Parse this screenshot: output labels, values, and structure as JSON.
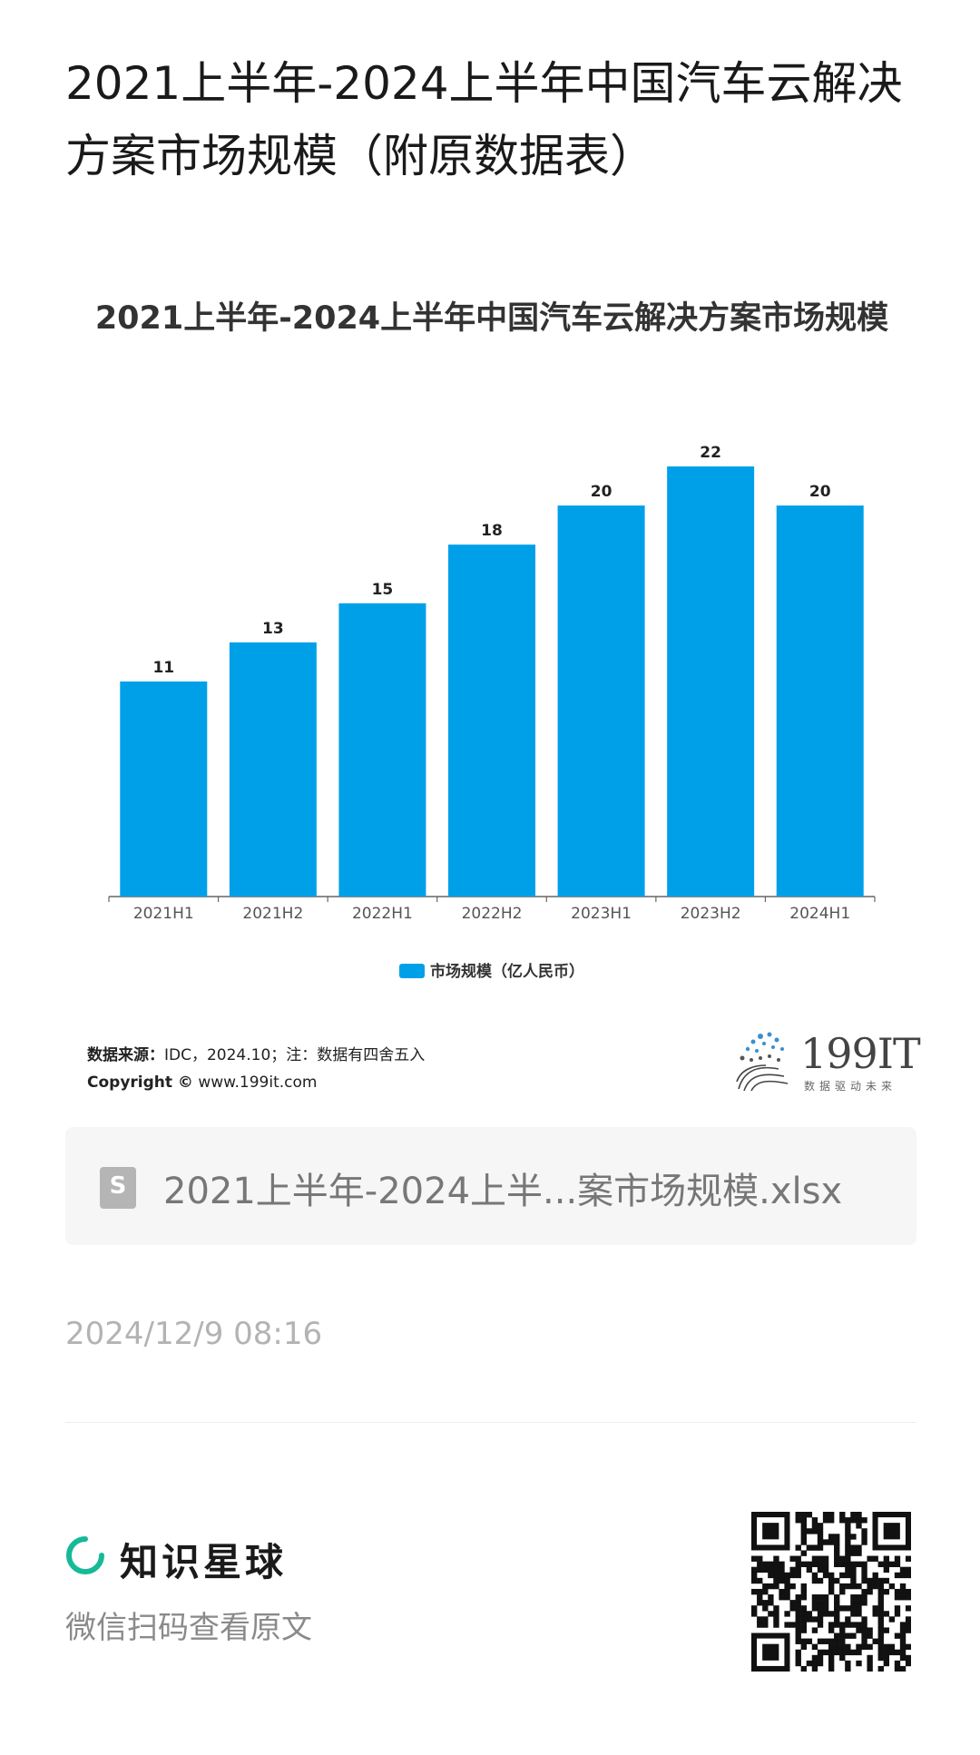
{
  "page_title": "2021上半年-2024上半年中国汽车云解决方案市场规模（附原数据表）",
  "chart_data": {
    "type": "bar",
    "title": "2021上半年-2024上半年中国汽车云解决方案市场规模",
    "categories": [
      "2021H1",
      "2021H2",
      "2022H1",
      "2022H2",
      "2023H1",
      "2023H2",
      "2024H1"
    ],
    "series": [
      {
        "name": "市场规模（亿人民币）",
        "values": [
          11,
          13,
          15,
          18,
          20,
          22,
          20
        ],
        "color": "#00a0e9"
      }
    ],
    "ylim": [
      0,
      22
    ],
    "data_labels": true,
    "grid": false,
    "legend_position": "bottom"
  },
  "source": {
    "label": "数据来源：",
    "text": "IDC，2024.10；注：数据有四舍五入",
    "copyright_label": "Copyright ©",
    "copyright_url": "www.199it.com"
  },
  "brand": {
    "name": "199IT",
    "tagline": "数据驱动未来"
  },
  "file": {
    "icon": "spreadsheet-file-icon",
    "letter": "S",
    "name": "2021上半年-2024上半...案市场规模.xlsx"
  },
  "timestamp": "2024/12/9 08:16",
  "footer": {
    "app_name": "知识星球",
    "scan_text": "微信扫码查看原文",
    "accent_color": "#16b998"
  }
}
